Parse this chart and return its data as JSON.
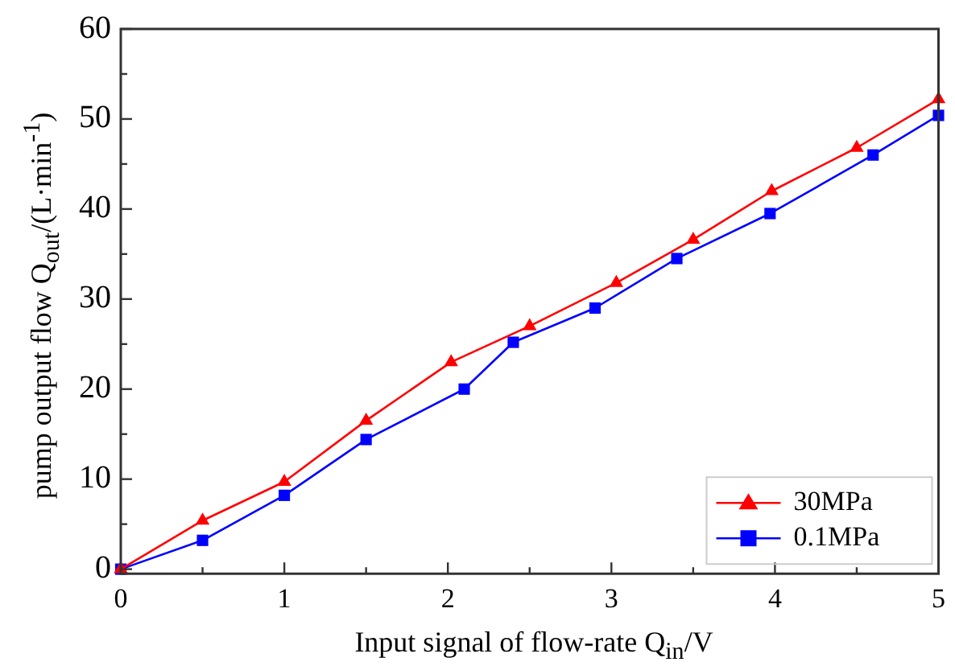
{
  "chart_data": {
    "type": "line",
    "xlabel": "Input signal of flow-rate Q$_{in}$/V",
    "ylabel": "pump output flow Q$_{out}$/(L·min$^{-1}$)",
    "xlim": [
      0,
      5
    ],
    "xticks": [
      0,
      1,
      2,
      3,
      4,
      5
    ],
    "ylim": [
      -0.5,
      60
    ],
    "yticks": [
      0,
      10,
      20,
      30,
      40,
      50,
      60
    ],
    "grid": false,
    "legend": "bottom right",
    "line_style": "solid",
    "series": [
      {
        "name": "30MPa",
        "color": "#ff0000",
        "marker": "triangle",
        "x": [
          0,
          0.5,
          1,
          1.5,
          2.02,
          2.5,
          3.03,
          3.5,
          3.98,
          4.5,
          5
        ],
        "values": [
          0,
          5.4,
          9.7,
          16.5,
          23,
          27,
          31.8,
          36.6,
          42,
          46.8,
          52.2
        ]
      },
      {
        "name": "0.1MPa",
        "color": "#0000ff",
        "marker": "square",
        "x": [
          0,
          0.5,
          1,
          1.5,
          2.1,
          2.4,
          2.9,
          3.4,
          3.97,
          4.6,
          5
        ],
        "values": [
          0,
          3.2,
          8.2,
          14.4,
          20,
          25.2,
          29,
          34.5,
          39.5,
          46,
          50.4
        ]
      }
    ]
  }
}
